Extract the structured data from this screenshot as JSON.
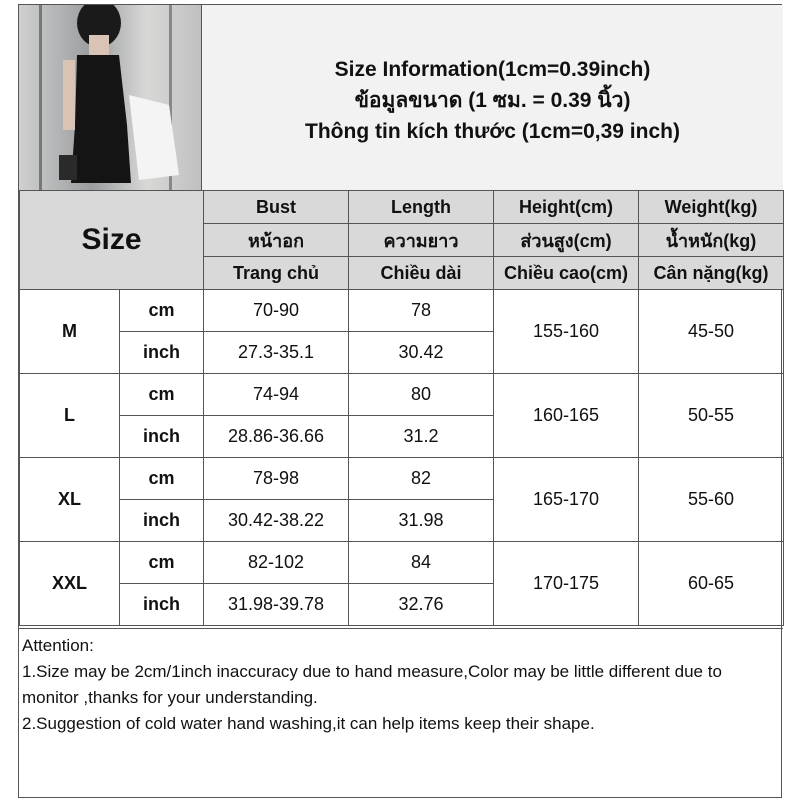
{
  "title": {
    "line1": "Size Information(1cm=0.39inch)",
    "line2": "ข้อมูลขนาด (1 ซม. = 0.39 นิ้ว)",
    "line3": "Thông tin kích thước (1cm=0,39 inch)"
  },
  "table": {
    "size_label": "Size",
    "headers": [
      [
        "Bust",
        "Length",
        "Height(cm)",
        "Weight(kg)"
      ],
      [
        "หน้าอก",
        "ความยาว",
        "ส่วนสูง(cm)",
        "น้ำหนัก(kg)"
      ],
      [
        "Trang chủ",
        "Chiều dài",
        "Chiều cao(cm)",
        "Cân nặng(kg)"
      ]
    ],
    "rows": [
      {
        "size": "M",
        "cm_label": "cm",
        "inch_label": "inch",
        "bust_cm": "70-90",
        "length_cm": "78",
        "bust_inch": "27.3-35.1",
        "length_inch": "30.42",
        "height": "155-160",
        "weight": "45-50"
      },
      {
        "size": "L",
        "cm_label": "cm",
        "inch_label": "inch",
        "bust_cm": "74-94",
        "length_cm": "80",
        "bust_inch": "28.86-36.66",
        "length_inch": "31.2",
        "height": "160-165",
        "weight": "50-55"
      },
      {
        "size": "XL",
        "cm_label": "cm",
        "inch_label": "inch",
        "bust_cm": "78-98",
        "length_cm": "82",
        "bust_inch": "30.42-38.22",
        "length_inch": "31.98",
        "height": "165-170",
        "weight": "55-60"
      },
      {
        "size": "XXL",
        "cm_label": "cm",
        "inch_label": "inch",
        "bust_cm": "82-102",
        "length_cm": "84",
        "bust_inch": "31.98-39.78",
        "length_inch": "32.76",
        "height": "170-175",
        "weight": "60-65"
      }
    ]
  },
  "attention": {
    "heading": "Attention:",
    "note1": "1.Size may be 2cm/1inch inaccuracy due to hand measure,Color may be little different due to monitor ,thanks for your understanding.",
    "note2": "2.Suggestion of cold water hand washing,it can help items keep their shape."
  }
}
